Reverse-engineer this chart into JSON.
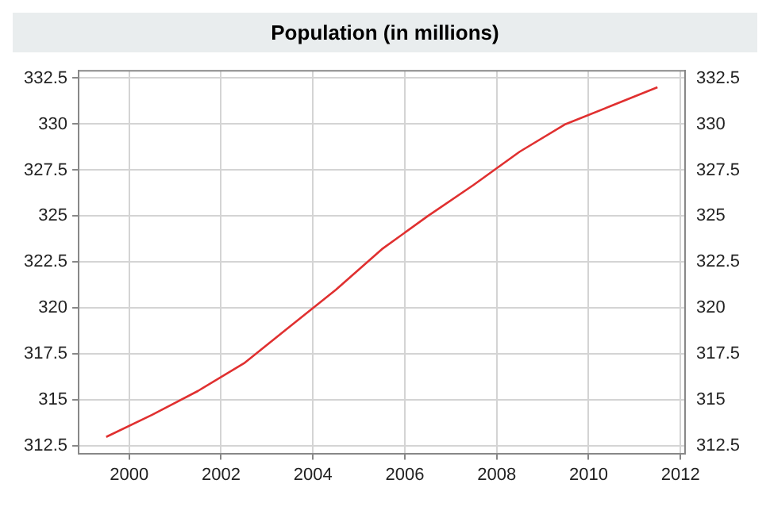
{
  "chart_data": {
    "type": "line",
    "title": "Population (in millions)",
    "x": [
      1999.5,
      2000.5,
      2001.5,
      2002.5,
      2003.5,
      2004.5,
      2005.5,
      2006.5,
      2007.5,
      2008.5,
      2009.5,
      2010.5,
      2011.5
    ],
    "series": [
      {
        "color": "#e03030",
        "values": [
          313.0,
          314.2,
          315.5,
          317.0,
          319.0,
          321.0,
          323.2,
          325.0,
          326.7,
          328.5,
          330.0,
          331.0,
          332.0
        ]
      }
    ],
    "xlim": [
      1998.9,
      2012.1
    ],
    "xticks": [
      2000,
      2002,
      2004,
      2006,
      2008,
      2010,
      2012
    ],
    "ylim": [
      312.1,
      332.9
    ],
    "yticks": [
      312.5,
      315,
      317.5,
      320,
      322.5,
      325,
      327.5,
      330,
      332.5
    ],
    "y2lim": [
      312.1,
      332.9
    ],
    "y2ticks": [
      312.5,
      315,
      317.5,
      320,
      322.5,
      325,
      327.5,
      330,
      332.5
    ],
    "grid": true,
    "legend": false,
    "marker": "none",
    "line_style": "solid"
  }
}
